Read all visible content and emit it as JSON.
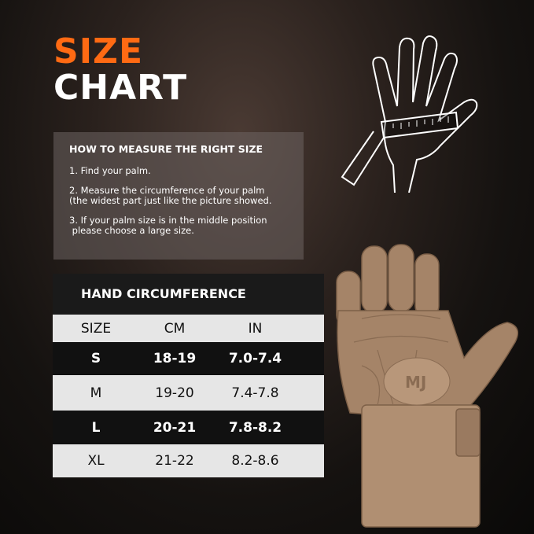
{
  "title": {
    "line1": "SIZE",
    "line2": "CHART"
  },
  "howto": {
    "heading": "HOW TO MEASURE THE RIGHT SIZE",
    "steps": [
      "1. Find your palm.",
      "2. Measure the circumference of your palm\n(the widest part just like the picture showed.",
      "3. If your palm size is in the middle position\n please choose a large size."
    ]
  },
  "table": {
    "title": "HAND CIRCUMFERENCE",
    "columns": [
      "SIZE",
      "CM",
      "IN"
    ],
    "rows": [
      [
        "S",
        "18-19",
        "7.0-7.4"
      ],
      [
        "M",
        "19-20",
        "7.4-7.8"
      ],
      [
        "L",
        "20-21",
        "7.8-8.2"
      ],
      [
        "XL",
        "21-22",
        "8.2-8.6"
      ]
    ]
  },
  "colors": {
    "accent": "#ff6a13",
    "glove": "#a58468"
  },
  "logo": "MJ"
}
